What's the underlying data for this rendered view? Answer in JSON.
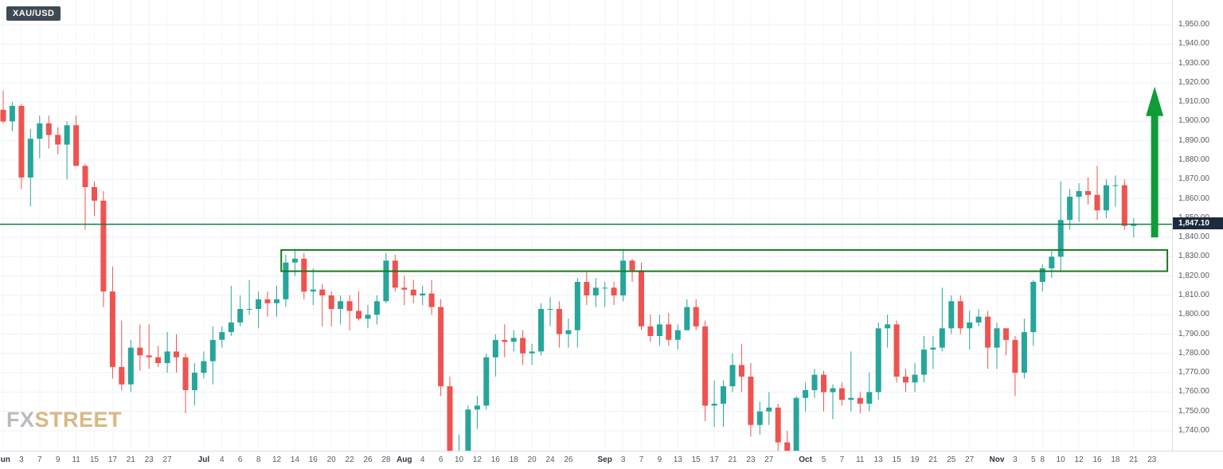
{
  "symbol_badge": {
    "label": "XAU/USD"
  },
  "watermark": {
    "part1": "FX",
    "part2": "STREET"
  },
  "price_axis": {
    "ticks": [
      "1,950.00",
      "1,940.00",
      "1,930.00",
      "1,920.00",
      "1,910.00",
      "1,900.00",
      "1,890.00",
      "1,880.00",
      "1,870.00",
      "1,860.00",
      "1,850.00",
      "1,840.00",
      "1,830.00",
      "1,820.00",
      "1,810.00",
      "1,800.00",
      "1,790.00",
      "1,780.00",
      "1,770.00",
      "1,760.00",
      "1,750.00",
      "1,740.00"
    ],
    "current_price_label": "1,847.10",
    "price_tag_bg": "#1c2b3d"
  },
  "time_axis": {
    "labels": [
      {
        "text": "Jun",
        "index": 0
      },
      {
        "text": "3",
        "index": 2
      },
      {
        "text": "7",
        "index": 4
      },
      {
        "text": "9",
        "index": 6
      },
      {
        "text": "11",
        "index": 8
      },
      {
        "text": "15",
        "index": 10
      },
      {
        "text": "17",
        "index": 12
      },
      {
        "text": "21",
        "index": 14
      },
      {
        "text": "23",
        "index": 16
      },
      {
        "text": "27",
        "index": 18
      },
      {
        "text": "Jul",
        "index": 22
      },
      {
        "text": "4",
        "index": 24
      },
      {
        "text": "6",
        "index": 26
      },
      {
        "text": "8",
        "index": 28
      },
      {
        "text": "12",
        "index": 30
      },
      {
        "text": "14",
        "index": 32
      },
      {
        "text": "16",
        "index": 34
      },
      {
        "text": "20",
        "index": 36
      },
      {
        "text": "22",
        "index": 38
      },
      {
        "text": "26",
        "index": 40
      },
      {
        "text": "28",
        "index": 42
      },
      {
        "text": "Aug",
        "index": 44
      },
      {
        "text": "4",
        "index": 46
      },
      {
        "text": "6",
        "index": 48
      },
      {
        "text": "10",
        "index": 50
      },
      {
        "text": "12",
        "index": 52
      },
      {
        "text": "16",
        "index": 54
      },
      {
        "text": "18",
        "index": 56
      },
      {
        "text": "20",
        "index": 58
      },
      {
        "text": "24",
        "index": 60
      },
      {
        "text": "26",
        "index": 62
      },
      {
        "text": "Sep",
        "index": 66
      },
      {
        "text": "3",
        "index": 68
      },
      {
        "text": "7",
        "index": 70
      },
      {
        "text": "9",
        "index": 72
      },
      {
        "text": "13",
        "index": 74
      },
      {
        "text": "15",
        "index": 76
      },
      {
        "text": "17",
        "index": 78
      },
      {
        "text": "21",
        "index": 80
      },
      {
        "text": "23",
        "index": 82
      },
      {
        "text": "27",
        "index": 84
      },
      {
        "text": "Oct",
        "index": 88
      },
      {
        "text": "5",
        "index": 90
      },
      {
        "text": "7",
        "index": 92
      },
      {
        "text": "11",
        "index": 94
      },
      {
        "text": "13",
        "index": 96
      },
      {
        "text": "15",
        "index": 98
      },
      {
        "text": "19",
        "index": 100
      },
      {
        "text": "21",
        "index": 102
      },
      {
        "text": "25",
        "index": 104
      },
      {
        "text": "27",
        "index": 106
      },
      {
        "text": "Nov",
        "index": 109
      },
      {
        "text": "3",
        "index": 111
      },
      {
        "text": "5",
        "index": 113
      },
      {
        "text": "8",
        "index": 114
      },
      {
        "text": "10",
        "index": 116
      },
      {
        "text": "12",
        "index": 118
      },
      {
        "text": "16",
        "index": 120
      },
      {
        "text": "18",
        "index": 122
      },
      {
        "text": "21",
        "index": 124
      },
      {
        "text": "23",
        "index": 126
      }
    ]
  },
  "chart_data": {
    "type": "candlestick",
    "symbol": "XAU/USD",
    "up_color": "#26a69a",
    "down_color": "#ef5350",
    "price_range_visible": [
      1730,
      1963
    ],
    "ylim": [
      1740,
      1950
    ],
    "grid": true,
    "current_price": 1847.1,
    "candles": [
      [
        "Jun 1",
        1906,
        1916,
        1899,
        1900
      ],
      [
        "Jun 2",
        1900,
        1910,
        1895,
        1908
      ],
      [
        "Jun 3",
        1908,
        1909,
        1865,
        1871
      ],
      [
        "Jun 4",
        1871,
        1896,
        1856,
        1891
      ],
      [
        "Jun 7",
        1891,
        1903,
        1881,
        1899
      ],
      [
        "Jun 8",
        1899,
        1903,
        1886,
        1893
      ],
      [
        "Jun 9",
        1893,
        1897,
        1883,
        1888
      ],
      [
        "Jun 10",
        1888,
        1900,
        1870,
        1898
      ],
      [
        "Jun 11",
        1898,
        1903,
        1877,
        1877
      ],
      [
        "Jun 14",
        1877,
        1878,
        1844,
        1866
      ],
      [
        "Jun 15",
        1866,
        1869,
        1851,
        1859
      ],
      [
        "Jun 16",
        1859,
        1864,
        1804,
        1812
      ],
      [
        "Jun 17",
        1812,
        1825,
        1767,
        1773
      ],
      [
        "Jun 18",
        1773,
        1797,
        1761,
        1764
      ],
      [
        "Jun 21",
        1764,
        1787,
        1760,
        1783
      ],
      [
        "Jun 22",
        1783,
        1795,
        1771,
        1779
      ],
      [
        "Jun 23",
        1779,
        1795,
        1772,
        1778
      ],
      [
        "Jun 24",
        1778,
        1784,
        1773,
        1775
      ],
      [
        "Jun 25",
        1775,
        1791,
        1770,
        1781
      ],
      [
        "Jun 28",
        1781,
        1790,
        1770,
        1778
      ],
      [
        "Jun 29",
        1778,
        1780,
        1749,
        1761
      ],
      [
        "Jun 30",
        1761,
        1775,
        1753,
        1770
      ],
      [
        "Jul 1",
        1770,
        1781,
        1767,
        1776
      ],
      [
        "Jul 2",
        1776,
        1794,
        1764,
        1787
      ],
      [
        "Jul 5",
        1787,
        1794,
        1783,
        1791
      ],
      [
        "Jul 6",
        1791,
        1815,
        1789,
        1796
      ],
      [
        "Jul 7",
        1796,
        1810,
        1794,
        1803
      ],
      [
        "Jul 8",
        1803,
        1818,
        1800,
        1803
      ],
      [
        "Jul 9",
        1803,
        1812,
        1793,
        1808
      ],
      [
        "Jul 12",
        1808,
        1812,
        1799,
        1806
      ],
      [
        "Jul 13",
        1806,
        1815,
        1799,
        1808
      ],
      [
        "Jul 14",
        1808,
        1831,
        1804,
        1827
      ],
      [
        "Jul 15",
        1827,
        1834,
        1820,
        1829
      ],
      [
        "Jul 16",
        1829,
        1832,
        1808,
        1812
      ],
      [
        "Jul 19",
        1812,
        1824,
        1805,
        1813
      ],
      [
        "Jul 20",
        1813,
        1816,
        1794,
        1810
      ],
      [
        "Jul 21",
        1810,
        1812,
        1794,
        1803
      ],
      [
        "Jul 22",
        1803,
        1810,
        1795,
        1807
      ],
      [
        "Jul 23",
        1807,
        1810,
        1792,
        1802
      ],
      [
        "Jul 26",
        1802,
        1812,
        1797,
        1798
      ],
      [
        "Jul 27",
        1798,
        1805,
        1793,
        1800
      ],
      [
        "Jul 28",
        1800,
        1810,
        1795,
        1807
      ],
      [
        "Jul 29",
        1807,
        1832,
        1806,
        1828
      ],
      [
        "Jul 30",
        1828,
        1831,
        1812,
        1814
      ],
      [
        "Aug 2",
        1814,
        1820,
        1805,
        1813
      ],
      [
        "Aug 3",
        1813,
        1818,
        1806,
        1810
      ],
      [
        "Aug 4",
        1810,
        1815,
        1805,
        1811
      ],
      [
        "Aug 5",
        1811,
        1818,
        1800,
        1804
      ],
      [
        "Aug 6",
        1804,
        1808,
        1758,
        1763
      ],
      [
        "Aug 9",
        1763,
        1768,
        1684,
        1729
      ],
      [
        "Aug 10",
        1729,
        1738,
        1717,
        1729
      ],
      [
        "Aug 11",
        1729,
        1753,
        1722,
        1751
      ],
      [
        "Aug 12",
        1751,
        1758,
        1741,
        1753
      ],
      [
        "Aug 13",
        1753,
        1780,
        1751,
        1778
      ],
      [
        "Aug 16",
        1778,
        1790,
        1768,
        1787
      ],
      [
        "Aug 17",
        1787,
        1795,
        1778,
        1786
      ],
      [
        "Aug 18",
        1786,
        1792,
        1781,
        1788
      ],
      [
        "Aug 19",
        1788,
        1792,
        1774,
        1780
      ],
      [
        "Aug 20",
        1780,
        1785,
        1774,
        1781
      ],
      [
        "Aug 23",
        1781,
        1806,
        1779,
        1803
      ],
      [
        "Aug 24",
        1803,
        1809,
        1794,
        1803
      ],
      [
        "Aug 25",
        1803,
        1807,
        1783,
        1790
      ],
      [
        "Aug 26",
        1790,
        1798,
        1783,
        1792
      ],
      [
        "Aug 27",
        1792,
        1819,
        1783,
        1817
      ],
      [
        "Aug 30",
        1817,
        1822,
        1805,
        1810
      ],
      [
        "Aug 31",
        1810,
        1819,
        1804,
        1814
      ],
      [
        "Sep 1",
        1814,
        1817,
        1804,
        1814
      ],
      [
        "Sep 2",
        1814,
        1817,
        1805,
        1810
      ],
      [
        "Sep 3",
        1810,
        1834,
        1807,
        1828
      ],
      [
        "Sep 6",
        1828,
        1829,
        1817,
        1823
      ],
      [
        "Sep 7",
        1823,
        1827,
        1792,
        1794
      ],
      [
        "Sep 8",
        1794,
        1800,
        1786,
        1789
      ],
      [
        "Sep 9",
        1789,
        1800,
        1784,
        1795
      ],
      [
        "Sep 10",
        1795,
        1801,
        1784,
        1787
      ],
      [
        "Sep 13",
        1787,
        1795,
        1782,
        1792
      ],
      [
        "Sep 14",
        1792,
        1808,
        1792,
        1804
      ],
      [
        "Sep 15",
        1804,
        1808,
        1792,
        1794
      ],
      [
        "Sep 16",
        1794,
        1797,
        1745,
        1753
      ],
      [
        "Sep 17",
        1753,
        1766,
        1742,
        1754
      ],
      [
        "Sep 20",
        1754,
        1766,
        1742,
        1763
      ],
      [
        "Sep 21",
        1763,
        1780,
        1760,
        1774
      ],
      [
        "Sep 22",
        1774,
        1785,
        1760,
        1768
      ],
      [
        "Sep 23",
        1768,
        1775,
        1737,
        1743
      ],
      [
        "Sep 24",
        1743,
        1755,
        1738,
        1750
      ],
      [
        "Sep 27",
        1750,
        1760,
        1743,
        1752
      ],
      [
        "Sep 28",
        1752,
        1754,
        1727,
        1734
      ],
      [
        "Sep 29",
        1734,
        1740,
        1721,
        1726
      ],
      [
        "Sep 30",
        1726,
        1758,
        1721,
        1757
      ],
      [
        "Oct 1",
        1757,
        1765,
        1750,
        1761
      ],
      [
        "Oct 4",
        1761,
        1772,
        1757,
        1769
      ],
      [
        "Oct 5",
        1769,
        1771,
        1750,
        1760
      ],
      [
        "Oct 6",
        1760,
        1764,
        1746,
        1762
      ],
      [
        "Oct 7",
        1762,
        1765,
        1753,
        1756
      ],
      [
        "Oct 8",
        1756,
        1781,
        1750,
        1757
      ],
      [
        "Oct 11",
        1757,
        1760,
        1749,
        1754
      ],
      [
        "Oct 12",
        1754,
        1770,
        1750,
        1760
      ],
      [
        "Oct 13",
        1760,
        1796,
        1756,
        1793
      ],
      [
        "Oct 14",
        1793,
        1800,
        1783,
        1795
      ],
      [
        "Oct 15",
        1795,
        1797,
        1765,
        1768
      ],
      [
        "Oct 18",
        1768,
        1772,
        1760,
        1765
      ],
      [
        "Oct 19",
        1765,
        1775,
        1760,
        1769
      ],
      [
        "Oct 20",
        1769,
        1789,
        1765,
        1782
      ],
      [
        "Oct 21",
        1782,
        1789,
        1772,
        1783
      ],
      [
        "Oct 22",
        1783,
        1814,
        1781,
        1793
      ],
      [
        "Oct 25",
        1793,
        1810,
        1790,
        1807
      ],
      [
        "Oct 26",
        1807,
        1810,
        1790,
        1793
      ],
      [
        "Oct 27",
        1793,
        1802,
        1782,
        1796
      ],
      [
        "Oct 28",
        1796,
        1803,
        1794,
        1799
      ],
      [
        "Oct 29",
        1799,
        1802,
        1772,
        1783
      ],
      [
        "Nov 1",
        1783,
        1796,
        1772,
        1793
      ],
      [
        "Nov 2",
        1793,
        1793,
        1779,
        1787
      ],
      [
        "Nov 3",
        1787,
        1789,
        1758,
        1770
      ],
      [
        "Nov 4",
        1770,
        1798,
        1767,
        1791
      ],
      [
        "Nov 5",
        1791,
        1818,
        1784,
        1817
      ],
      [
        "Nov 8",
        1817,
        1826,
        1812,
        1824
      ],
      [
        "Nov 9",
        1824,
        1833,
        1819,
        1830
      ],
      [
        "Nov 10",
        1830,
        1869,
        1822,
        1849
      ],
      [
        "Nov 11",
        1849,
        1865,
        1844,
        1861
      ],
      [
        "Nov 12",
        1861,
        1868,
        1848,
        1864
      ],
      [
        "Nov 15",
        1864,
        1871,
        1857,
        1862
      ],
      [
        "Nov 16",
        1862,
        1877,
        1849,
        1854
      ],
      [
        "Nov 17",
        1854,
        1870,
        1850,
        1867
      ],
      [
        "Nov 18",
        1867,
        1872,
        1856,
        1867
      ],
      [
        "Nov 19",
        1867,
        1870,
        1844,
        1846
      ],
      [
        "Nov 22",
        1846,
        1850,
        1840,
        1847.1
      ]
    ],
    "annotations": [
      {
        "type": "hline",
        "price": 1846.8,
        "color": "#0c8140",
        "width": 1.5
      },
      {
        "type": "rect",
        "price_top": 1833.5,
        "price_bottom": 1822.5,
        "from_index": 30.5,
        "to_index": 127.7,
        "color": "#1a7a1f",
        "stroke_width": 2
      },
      {
        "type": "arrow_up",
        "index": 126.3,
        "price_from": 1840,
        "price_to": 1918,
        "color": "#109c38"
      }
    ]
  }
}
